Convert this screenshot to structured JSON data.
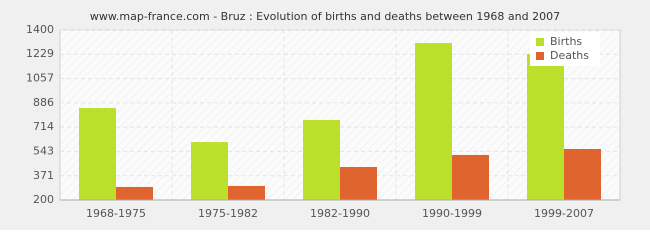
{
  "chart_data": {
    "type": "bar",
    "title": "www.map-france.com - Bruz : Evolution of births and deaths between 1968 and 2007",
    "categories": [
      "1968-1975",
      "1975-1982",
      "1982-1990",
      "1990-1999",
      "1999-2007"
    ],
    "series": [
      {
        "name": "Births",
        "color": "#bbe02c",
        "values": [
          849,
          609,
          765,
          1308,
          1231
        ]
      },
      {
        "name": "Deaths",
        "color": "#e0642e",
        "values": [
          292,
          299,
          433,
          518,
          560
        ]
      }
    ],
    "ylim": [
      200,
      1400
    ],
    "yticks": [
      200,
      371,
      543,
      714,
      886,
      1057,
      1229,
      1400
    ],
    "grid": true,
    "legend": "top-right"
  }
}
